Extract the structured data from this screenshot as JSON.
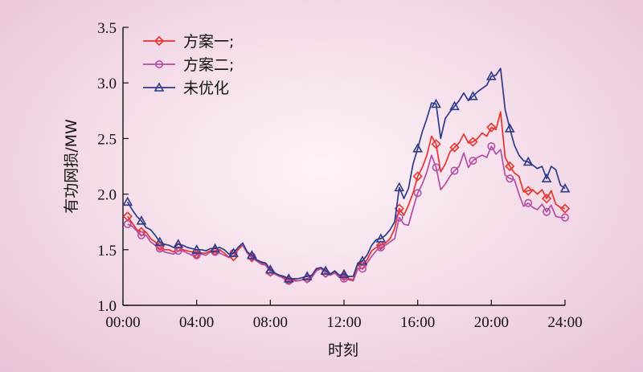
{
  "chart_data": {
    "type": "line",
    "xlabel": "时刻",
    "ylabel": "有功网损/MW",
    "xlim": [
      0,
      24
    ],
    "ylim": [
      1.0,
      3.5
    ],
    "xticks": [
      0,
      4,
      8,
      12,
      16,
      20,
      24
    ],
    "xtick_labels": [
      "00:00",
      "04:00",
      "08:00",
      "12:00",
      "16:00",
      "20:00",
      "24:00"
    ],
    "yticks": [
      1.0,
      1.5,
      2.0,
      2.5,
      3.0,
      3.5
    ],
    "ytick_labels": [
      "1.0",
      "1.5",
      "2.0",
      "2.5",
      "3.0",
      "3.5"
    ],
    "grid": false,
    "legend_position": "top-left",
    "x": [
      0.25,
      0.5,
      0.75,
      1.0,
      1.25,
      1.5,
      1.75,
      2.0,
      2.25,
      2.5,
      2.75,
      3.0,
      3.25,
      3.5,
      3.75,
      4.0,
      4.25,
      4.5,
      4.75,
      5.0,
      5.25,
      5.5,
      5.75,
      6.0,
      6.25,
      6.5,
      6.75,
      7.0,
      7.25,
      7.5,
      7.75,
      8.0,
      8.25,
      8.5,
      8.75,
      9.0,
      9.25,
      9.5,
      9.75,
      10.0,
      10.25,
      10.5,
      10.75,
      11.0,
      11.25,
      11.5,
      11.75,
      12.0,
      12.25,
      12.5,
      12.75,
      13.0,
      13.25,
      13.5,
      13.75,
      14.0,
      14.25,
      14.5,
      14.75,
      15.0,
      15.25,
      15.5,
      15.75,
      16.0,
      16.25,
      16.5,
      16.75,
      17.0,
      17.25,
      17.5,
      17.75,
      18.0,
      18.25,
      18.5,
      18.75,
      19.0,
      19.25,
      19.5,
      19.75,
      20.0,
      20.25,
      20.5,
      20.75,
      21.0,
      21.25,
      21.5,
      21.75,
      22.0,
      22.25,
      22.5,
      22.75,
      23.0,
      23.25,
      23.5,
      23.75,
      24.0
    ],
    "series": [
      {
        "name": "方案一;",
        "color": "#e8322c",
        "marker": "diamond",
        "marker_every": 4,
        "values": [
          1.8,
          1.74,
          1.68,
          1.66,
          1.66,
          1.6,
          1.57,
          1.53,
          1.5,
          1.5,
          1.48,
          1.52,
          1.5,
          1.49,
          1.48,
          1.46,
          1.47,
          1.47,
          1.49,
          1.49,
          1.5,
          1.47,
          1.43,
          1.44,
          1.5,
          1.54,
          1.47,
          1.43,
          1.4,
          1.38,
          1.37,
          1.3,
          1.28,
          1.26,
          1.25,
          1.23,
          1.23,
          1.22,
          1.23,
          1.24,
          1.26,
          1.32,
          1.33,
          1.29,
          1.27,
          1.3,
          1.25,
          1.26,
          1.24,
          1.23,
          1.37,
          1.36,
          1.41,
          1.49,
          1.52,
          1.54,
          1.56,
          1.6,
          1.69,
          1.87,
          1.81,
          1.9,
          2.01,
          2.16,
          2.24,
          2.35,
          2.52,
          2.45,
          2.2,
          2.27,
          2.38,
          2.42,
          2.46,
          2.54,
          2.46,
          2.47,
          2.5,
          2.55,
          2.52,
          2.6,
          2.58,
          2.74,
          2.33,
          2.25,
          2.19,
          2.16,
          2.02,
          2.03,
          2.04,
          2.0,
          2.04,
          1.96,
          2.03,
          1.91,
          1.88,
          1.87
        ]
      },
      {
        "name": "方案二;",
        "color": "#b34ea3",
        "marker": "circle",
        "marker_every": 4,
        "values": [
          1.73,
          1.71,
          1.67,
          1.63,
          1.63,
          1.57,
          1.54,
          1.51,
          1.48,
          1.47,
          1.46,
          1.49,
          1.49,
          1.47,
          1.45,
          1.45,
          1.46,
          1.45,
          1.48,
          1.48,
          1.47,
          1.45,
          1.43,
          1.47,
          1.52,
          1.54,
          1.47,
          1.44,
          1.4,
          1.37,
          1.36,
          1.3,
          1.28,
          1.26,
          1.24,
          1.22,
          1.22,
          1.22,
          1.23,
          1.24,
          1.25,
          1.31,
          1.33,
          1.29,
          1.27,
          1.29,
          1.25,
          1.24,
          1.23,
          1.22,
          1.33,
          1.33,
          1.38,
          1.44,
          1.49,
          1.52,
          1.54,
          1.57,
          1.6,
          1.79,
          1.73,
          1.72,
          1.87,
          2.01,
          2.09,
          2.2,
          2.35,
          2.24,
          2.04,
          2.09,
          2.16,
          2.21,
          2.25,
          2.37,
          2.24,
          2.3,
          2.33,
          2.35,
          2.33,
          2.43,
          2.36,
          2.4,
          2.17,
          2.14,
          2.13,
          2.0,
          1.89,
          1.92,
          1.88,
          1.86,
          1.91,
          1.84,
          1.9,
          1.8,
          1.79,
          1.79
        ]
      },
      {
        "name": "未优化",
        "color": "#2e3a8a",
        "marker": "triangle",
        "marker_every": 4,
        "values": [
          1.93,
          1.86,
          1.8,
          1.76,
          1.7,
          1.68,
          1.63,
          1.57,
          1.55,
          1.54,
          1.52,
          1.55,
          1.54,
          1.52,
          1.51,
          1.5,
          1.5,
          1.49,
          1.51,
          1.51,
          1.52,
          1.5,
          1.46,
          1.47,
          1.52,
          1.56,
          1.48,
          1.45,
          1.41,
          1.39,
          1.38,
          1.32,
          1.29,
          1.27,
          1.26,
          1.24,
          1.24,
          1.24,
          1.25,
          1.26,
          1.27,
          1.33,
          1.34,
          1.31,
          1.28,
          1.31,
          1.27,
          1.28,
          1.26,
          1.26,
          1.38,
          1.4,
          1.45,
          1.54,
          1.59,
          1.6,
          1.63,
          1.68,
          1.75,
          2.06,
          1.96,
          2.05,
          2.27,
          2.41,
          2.56,
          2.68,
          2.82,
          2.81,
          2.5,
          2.68,
          2.74,
          2.79,
          2.84,
          2.91,
          2.84,
          2.88,
          2.92,
          2.95,
          2.98,
          3.06,
          3.07,
          3.13,
          2.76,
          2.59,
          2.44,
          2.35,
          2.3,
          2.29,
          2.26,
          2.23,
          2.25,
          2.14,
          2.25,
          2.22,
          2.08,
          2.05
        ]
      }
    ]
  }
}
